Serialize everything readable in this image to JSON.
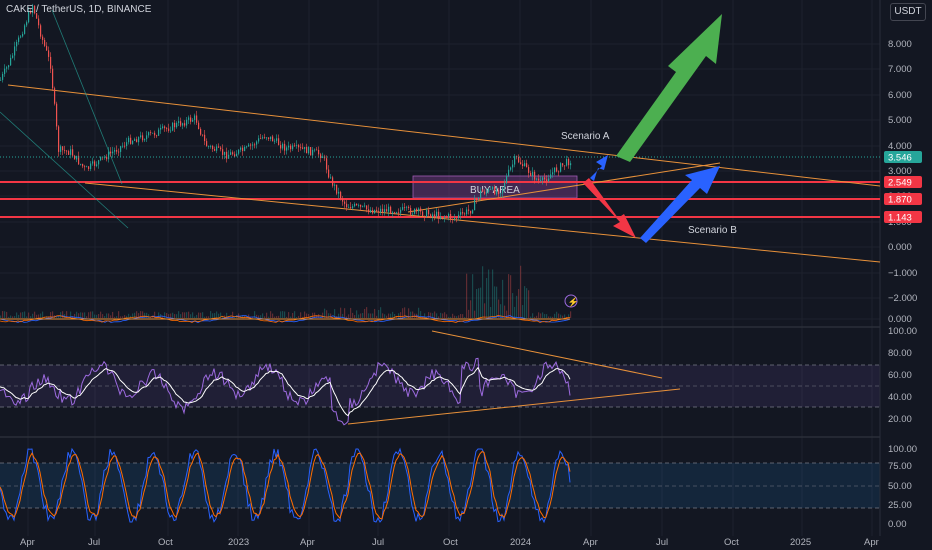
{
  "header": {
    "title": "CAKE / TetherUS, 1D, BINANCE",
    "currency_button": "USDT"
  },
  "colors": {
    "bg": "#131722",
    "grid": "#1e222d",
    "trend": "#e8913a",
    "support": "#f23645",
    "buy_zone": "#7b3f8c",
    "rsi_line": "#ffffff",
    "rsi_osc": "#9c6ade",
    "up": "#26a69a",
    "down": "#ef5350",
    "stoch_k": "#2962ff",
    "stoch_d": "#ff6d00",
    "arrow_green": "#4caf50",
    "arrow_blue": "#2962ff",
    "arrow_red": "#f23645",
    "price_tag": "#26a69a"
  },
  "annotations": {
    "scenario_a": "Scenario A",
    "scenario_b": "Scenario B",
    "buy_area": "BUY AREA"
  },
  "axis": {
    "price_ticks": [
      "8.000",
      "7.000",
      "6.000",
      "5.000",
      "4.000",
      "3.000",
      "2.000",
      "1.000",
      "0.000",
      "−1.000",
      "−2.000",
      "0.000"
    ],
    "price_tags": [
      "3.546",
      "2.549",
      "1.870",
      "1.143"
    ],
    "rsi_ticks": [
      "100.00",
      "80.00",
      "60.00",
      "40.00",
      "20.00"
    ],
    "stoch_ticks": [
      "100.00",
      "75.00",
      "50.00",
      "25.00",
      "0.00"
    ],
    "time_labels": [
      "Apr",
      "Jul",
      "Oct",
      "2023",
      "Apr",
      "Jul",
      "Oct",
      "2024",
      "Apr",
      "Jul",
      "Oct",
      "2025",
      "Apr"
    ]
  },
  "chart_data": {
    "type": "line",
    "title": "CAKE / TetherUS, 1D, BINANCE",
    "last_price": 3.546,
    "support_levels": [
      2.549,
      1.87,
      1.143
    ],
    "price_series_approx": {
      "x": [
        "Apr 2022",
        "May 2022",
        "Jun 2022",
        "Jul 2022",
        "Aug 2022",
        "Sep 2022",
        "Oct 2022",
        "Nov 2022",
        "Dec 2022",
        "Jan 2023",
        "Feb 2023",
        "Mar 2023",
        "Apr 2023",
        "May 2023",
        "Jun 2023",
        "Jul 2023",
        "Aug 2023",
        "Sep 2023",
        "Oct 2023",
        "Nov 2023",
        "Dec 2023",
        "Jan 2024",
        "Feb 2024",
        "Mar 2024"
      ],
      "y": [
        7.0,
        8.5,
        3.5,
        3.2,
        3.8,
        4.2,
        4.5,
        5.2,
        3.9,
        3.4,
        4.2,
        4.4,
        3.8,
        3.6,
        1.7,
        1.5,
        1.5,
        1.3,
        1.2,
        2.2,
        2.7,
        3.8,
        2.6,
        3.546
      ]
    }
  }
}
